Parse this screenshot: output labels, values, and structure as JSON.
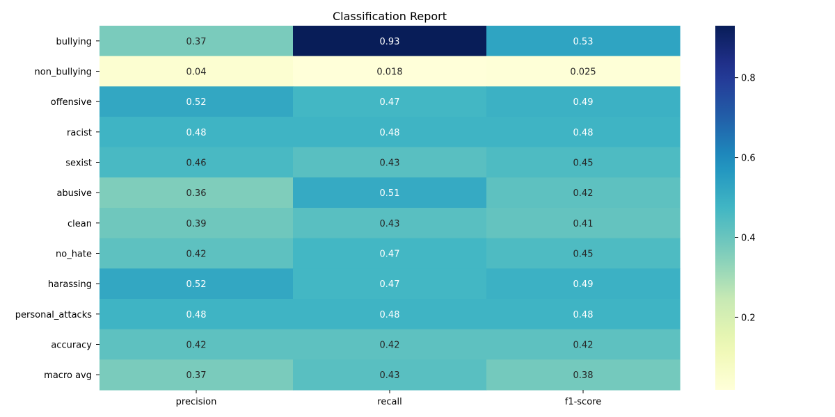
{
  "chart_data": {
    "type": "heatmap",
    "title": "Classification Report",
    "xlabel": "",
    "ylabel": "",
    "columns": [
      "precision",
      "recall",
      "f1-score"
    ],
    "rows": [
      "bullying",
      "non_bullying",
      "offensive",
      "racist",
      "sexist",
      "abusive",
      "clean",
      "no_hate",
      "harassing",
      "personal_attacks",
      "accuracy",
      "macro avg"
    ],
    "values": [
      [
        0.37,
        0.93,
        0.53
      ],
      [
        0.04,
        0.018,
        0.025
      ],
      [
        0.52,
        0.47,
        0.49
      ],
      [
        0.48,
        0.48,
        0.48
      ],
      [
        0.46,
        0.43,
        0.45
      ],
      [
        0.36,
        0.51,
        0.42
      ],
      [
        0.39,
        0.43,
        0.41
      ],
      [
        0.42,
        0.47,
        0.45
      ],
      [
        0.52,
        0.47,
        0.49
      ],
      [
        0.48,
        0.48,
        0.48
      ],
      [
        0.42,
        0.42,
        0.42
      ],
      [
        0.37,
        0.43,
        0.38
      ]
    ],
    "labels": [
      [
        "0.37",
        "0.93",
        "0.53"
      ],
      [
        "0.04",
        "0.018",
        "0.025"
      ],
      [
        "0.52",
        "0.47",
        "0.49"
      ],
      [
        "0.48",
        "0.48",
        "0.48"
      ],
      [
        "0.46",
        "0.43",
        "0.45"
      ],
      [
        "0.36",
        "0.51",
        "0.42"
      ],
      [
        "0.39",
        "0.43",
        "0.41"
      ],
      [
        "0.42",
        "0.47",
        "0.45"
      ],
      [
        "0.52",
        "0.47",
        "0.49"
      ],
      [
        "0.48",
        "0.48",
        "0.48"
      ],
      [
        "0.42",
        "0.42",
        "0.42"
      ],
      [
        "0.37",
        "0.43",
        "0.38"
      ]
    ],
    "colormap": "YlGnBu",
    "colorbar": {
      "range": [
        0.018,
        0.93
      ],
      "ticks": [
        0.2,
        0.4,
        0.6,
        0.8
      ],
      "tick_labels": [
        "0.2",
        "0.4",
        "0.6",
        "0.8"
      ]
    },
    "grid": false
  }
}
